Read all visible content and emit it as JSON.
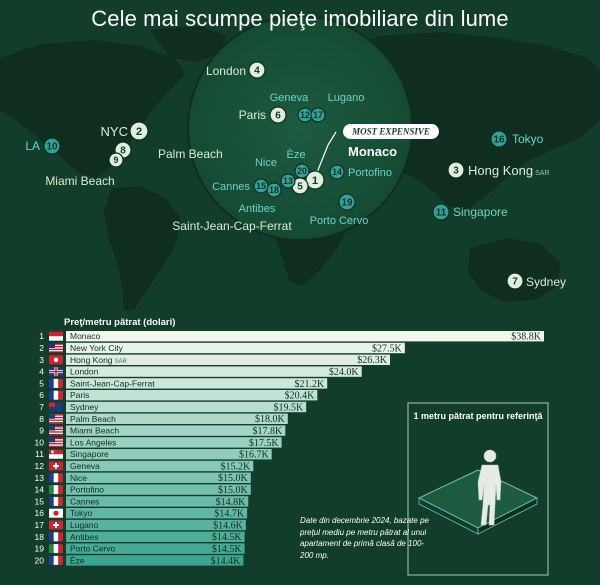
{
  "title": "Cele mai scumpe pieţe imobiliare din lume",
  "map": {
    "top_label": "MOST EXPENSIVE",
    "cities": [
      {
        "rank": 1,
        "name": "Monaco"
      },
      {
        "rank": 2,
        "name": "NYC"
      },
      {
        "rank": 3,
        "name": "Hong Kong",
        "suffix": "SAR"
      },
      {
        "rank": 4,
        "name": "London"
      },
      {
        "rank": 5,
        "name": "Saint-Jean-Cap-Ferrat"
      },
      {
        "rank": 6,
        "name": "Paris"
      },
      {
        "rank": 7,
        "name": "Sydney"
      },
      {
        "rank": 8,
        "name": "Palm Beach"
      },
      {
        "rank": 9,
        "name": "Miami Beach"
      },
      {
        "rank": 10,
        "name": "LA"
      },
      {
        "rank": 11,
        "name": "Singapore"
      },
      {
        "rank": 12,
        "name": "Geneva"
      },
      {
        "rank": 13,
        "name": "Nice"
      },
      {
        "rank": 14,
        "name": "Portofino"
      },
      {
        "rank": 15,
        "name": "Cannes"
      },
      {
        "rank": 16,
        "name": "Tokyo"
      },
      {
        "rank": 17,
        "name": "Lugano"
      },
      {
        "rank": 18,
        "name": "Antibes"
      },
      {
        "rank": 19,
        "name": "Porto Cervo"
      },
      {
        "rank": 20,
        "name": "Èze"
      }
    ]
  },
  "chart_data": {
    "type": "bar",
    "title": "Preţ/metru pătrat (dolari)",
    "categories": [
      "Monaco",
      "New York City",
      "Hong Kong",
      "London",
      "Saint-Jean-Cap-Ferrat",
      "Paris",
      "Sydney",
      "Palm Beach",
      "Miami Beach",
      "Los Angeles",
      "Singapore",
      "Geneva",
      "Nice",
      "Portofino",
      "Cannes",
      "Tokyo",
      "Lugano",
      "Antibes",
      "Porto Cervo",
      "Èze"
    ],
    "category_suffix": {
      "Hong Kong": "SAR"
    },
    "ranks": [
      "1",
      "2",
      "3",
      "4",
      "5",
      "6",
      "7",
      "8",
      "9",
      "10",
      "11",
      "12",
      "13",
      "14",
      "15",
      "16",
      "17",
      "18",
      "19",
      "20"
    ],
    "values": [
      38.8,
      27.5,
      26.3,
      24.0,
      21.2,
      20.4,
      19.5,
      18.0,
      17.8,
      17.5,
      16.7,
      15.2,
      15.0,
      15.0,
      14.8,
      14.7,
      14.6,
      14.5,
      14.5,
      14.4
    ],
    "value_labels": [
      "$38.8K",
      "$27.5K",
      "$26.3K",
      "$24.0K",
      "$21.2K",
      "$20.4K",
      "$19.5K",
      "$18.0K",
      "$17.8K",
      "$17.5K",
      "$16.7K",
      "$15.2K",
      "$15.0K",
      "$15.0K",
      "$14.8K",
      "$14.7K",
      "$14.6K",
      "$14.5K",
      "$14.5K",
      "$14.4K"
    ],
    "flags": [
      "monaco",
      "usa",
      "hongkong",
      "uk",
      "france",
      "france",
      "australia",
      "usa",
      "usa",
      "usa",
      "singapore",
      "switzerland",
      "france",
      "italy",
      "france",
      "japan",
      "switzerland",
      "france",
      "italy",
      "france"
    ],
    "orientation": "horizontal",
    "grid": false,
    "legend": "none"
  },
  "note": "Date din decembrie 2024, bazate pe preţul mediu pe metru pătrat al unui apartament de primă clasă de 100-200 mp.",
  "reference": {
    "label": "1 metru pătrat pentru referinţă"
  },
  "colors": {
    "background": "#123d2a",
    "map_land": "#0f2e20",
    "pin_light": "#dfeedd",
    "pin_teal": "#2fa39a",
    "label_light": "#d9ecd5",
    "label_teal": "#6ed3c6",
    "bar_top": "#f2f7ee",
    "bar_bottom": "#3aa690"
  }
}
